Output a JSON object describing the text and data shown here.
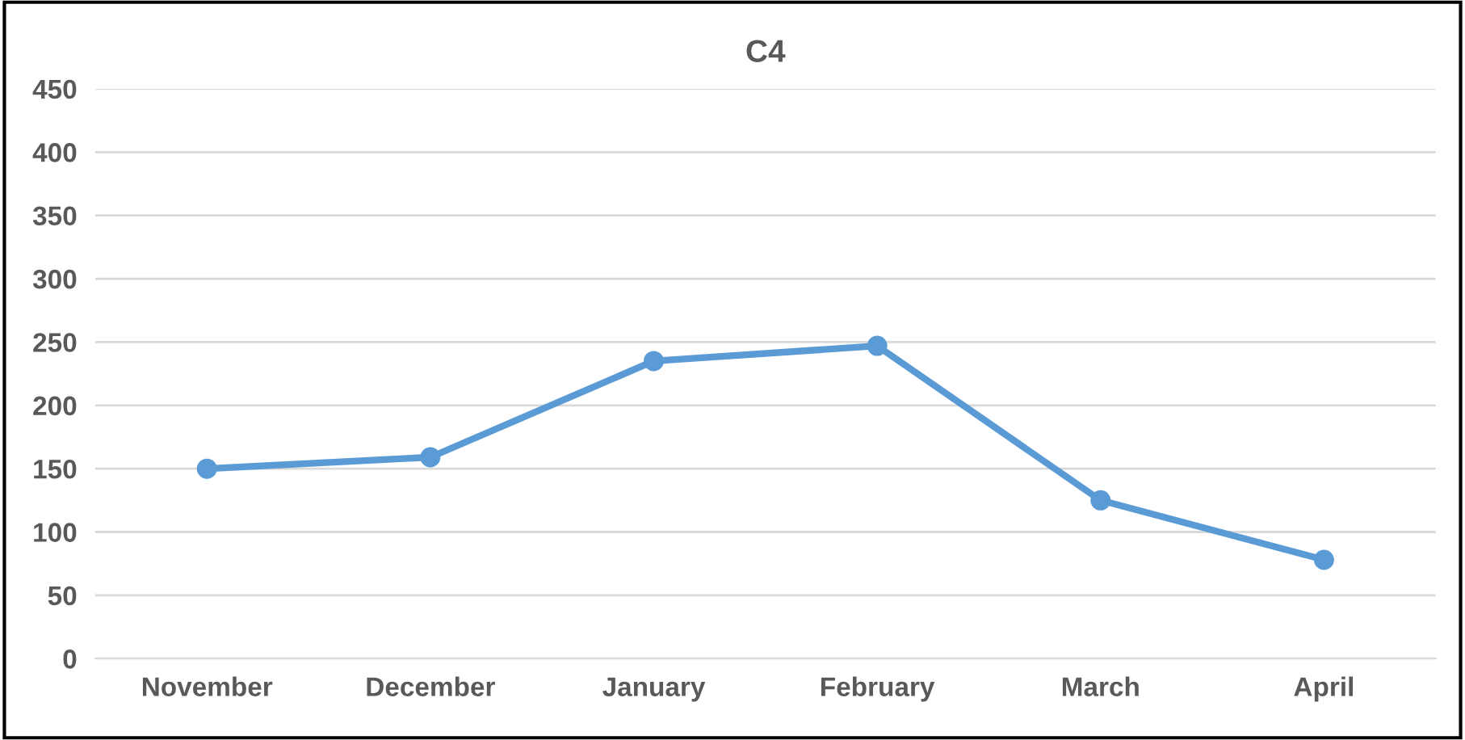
{
  "chart_data": {
    "type": "line",
    "title": "C4",
    "categories": [
      "November",
      "December",
      "January",
      "February",
      "March",
      "April"
    ],
    "series": [
      {
        "color": "#5b9bd5",
        "values": [
          150,
          159,
          235,
          247,
          125,
          78
        ]
      }
    ],
    "ylim": [
      0,
      450
    ],
    "yticks": [
      0,
      50,
      100,
      150,
      200,
      250,
      300,
      350,
      400,
      450
    ],
    "grid": "y",
    "marker": "circle",
    "line_style": "solid"
  }
}
